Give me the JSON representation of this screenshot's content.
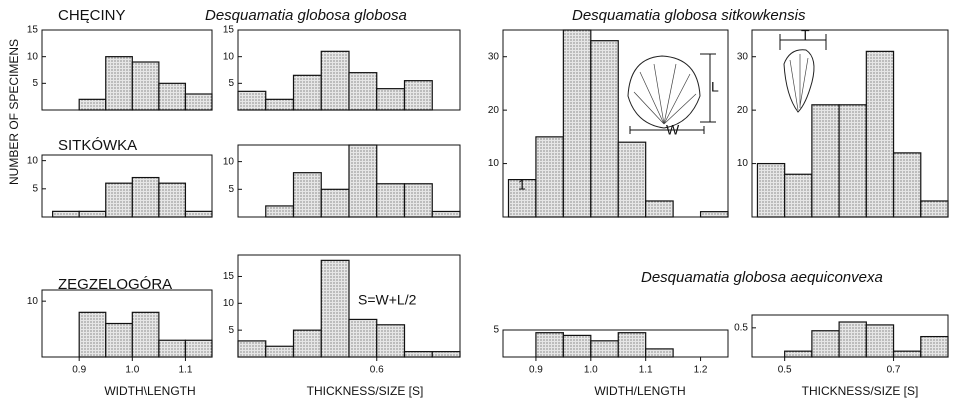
{
  "chart_data": [
    {
      "type": "histogram",
      "title": "CHĘCINY",
      "color": "#e6e6e6",
      "bins": [
        0.9,
        0.95,
        1.0,
        1.05,
        1.1,
        1.15
      ],
      "values": [
        2,
        10,
        9,
        5,
        3
      ],
      "xlim": [
        0.83,
        1.15
      ],
      "ylim": [
        0,
        15
      ],
      "yticks": [
        5,
        10,
        15
      ],
      "ylabel": "NUMBER OF SPECIMENS"
    },
    {
      "type": "histogram",
      "title": "Desquamatia globosa globosa",
      "color": "#e6e6e6",
      "bins": [
        0.5,
        0.52,
        0.54,
        0.56,
        0.58,
        0.6,
        0.62,
        0.64,
        0.66
      ],
      "values": [
        3.5,
        2,
        6.5,
        11,
        7,
        4,
        5.5,
        0
      ],
      "xlim": [
        0.5,
        0.66
      ],
      "ylim": [
        0,
        15
      ],
      "yticks": [
        5,
        10,
        15
      ]
    },
    {
      "type": "histogram",
      "title": "SITKÓWKA",
      "color": "#e6e6e6",
      "bins": [
        0.85,
        0.9,
        0.95,
        1.0,
        1.05,
        1.1,
        1.15
      ],
      "values": [
        1,
        1,
        6,
        7,
        6,
        1
      ],
      "xlim": [
        0.83,
        1.15
      ],
      "ylim": [
        0,
        11
      ],
      "yticks": [
        5,
        10
      ]
    },
    {
      "type": "histogram",
      "color": "#e6e6e6",
      "bins": [
        0.5,
        0.52,
        0.54,
        0.56,
        0.58,
        0.6,
        0.62,
        0.64,
        0.66
      ],
      "values": [
        0,
        2,
        8,
        5,
        13,
        6,
        6,
        1
      ],
      "xlim": [
        0.5,
        0.66
      ],
      "ylim": [
        0,
        13
      ],
      "yticks": [
        5,
        10
      ]
    },
    {
      "type": "histogram",
      "title": "ZEGZELOGÓRA",
      "color": "#e6e6e6",
      "bins": [
        0.9,
        0.95,
        1.0,
        1.05,
        1.1,
        1.15
      ],
      "values": [
        8,
        6,
        8,
        3,
        3
      ],
      "xlim": [
        0.83,
        1.15
      ],
      "ylim": [
        0,
        12
      ],
      "yticks": [
        10
      ],
      "xticks": [
        0.9,
        {
          "value": 1,
          "label": "1.0"
        },
        1.1
      ],
      "xlabel": "WIDTH\\LENGTH"
    },
    {
      "type": "histogram",
      "color": "#e6e6e6",
      "bins": [
        0.5,
        0.52,
        0.54,
        0.56,
        0.58,
        0.6,
        0.62,
        0.64,
        0.66
      ],
      "values": [
        3,
        2,
        5,
        18,
        7,
        6,
        1,
        1
      ],
      "xlim": [
        0.5,
        0.66
      ],
      "ylim": [
        0,
        19
      ],
      "yticks": [
        5,
        10,
        15
      ],
      "xticks": [
        0.6
      ],
      "xlabel": "THICKNESS/SIZE [S]",
      "annotations": [
        "S=W+L/2"
      ]
    },
    {
      "type": "histogram",
      "title": "Desquamatia globosa sitkowkensis",
      "color": "#e6e6e6",
      "bins": [
        0.85,
        0.9,
        0.95,
        1.0,
        1.05,
        1.1,
        1.15,
        1.2,
        1.25
      ],
      "values": [
        7,
        15,
        35,
        33,
        14,
        3,
        0,
        1
      ],
      "xlim": [
        0.84,
        1.25
      ],
      "ylim": [
        0,
        35
      ],
      "yticks": [
        10,
        20,
        30
      ],
      "annotations": [
        "1",
        "L",
        "W"
      ]
    },
    {
      "type": "histogram",
      "color": "#e6e6e6",
      "bins": [
        0.45,
        0.5,
        0.55,
        0.6,
        0.65,
        0.7,
        0.75,
        0.8
      ],
      "values": [
        10,
        8,
        21,
        21,
        31,
        12,
        3
      ],
      "xlim": [
        0.44,
        0.8
      ],
      "ylim": [
        0,
        35
      ],
      "yticks": [
        10,
        20,
        30
      ],
      "annotations": [
        "T"
      ]
    },
    {
      "type": "histogram",
      "title": "Desquamatia globosa aequiconvexa",
      "color": "#e6e6e6",
      "bins": [
        0.9,
        0.95,
        1.0,
        1.05,
        1.1,
        1.15
      ],
      "values": [
        4.5,
        4,
        3,
        4.5,
        1.5
      ],
      "xlim": [
        0.84,
        1.25
      ],
      "ylim": [
        0,
        5
      ],
      "yticks": [
        5
      ],
      "xticks": [
        0.9,
        {
          "value": 1,
          "label": "1.0"
        },
        1.1,
        1.2
      ],
      "xlabel": "WIDTH/LENGTH"
    },
    {
      "type": "histogram",
      "color": "#e6e6e6",
      "bins": [
        0.45,
        0.5,
        0.55,
        0.6,
        0.65,
        0.7,
        0.75,
        0.8
      ],
      "values": [
        0,
        0.1,
        0.45,
        0.6,
        0.55,
        0.1,
        0.35
      ],
      "xlim": [
        0.44,
        0.8
      ],
      "ylim": [
        0,
        0.72
      ],
      "yticks": [
        0.5
      ],
      "xticks": [
        0.5,
        0.7
      ],
      "xlabel": "THICKNESS/SIZE [S]"
    }
  ]
}
